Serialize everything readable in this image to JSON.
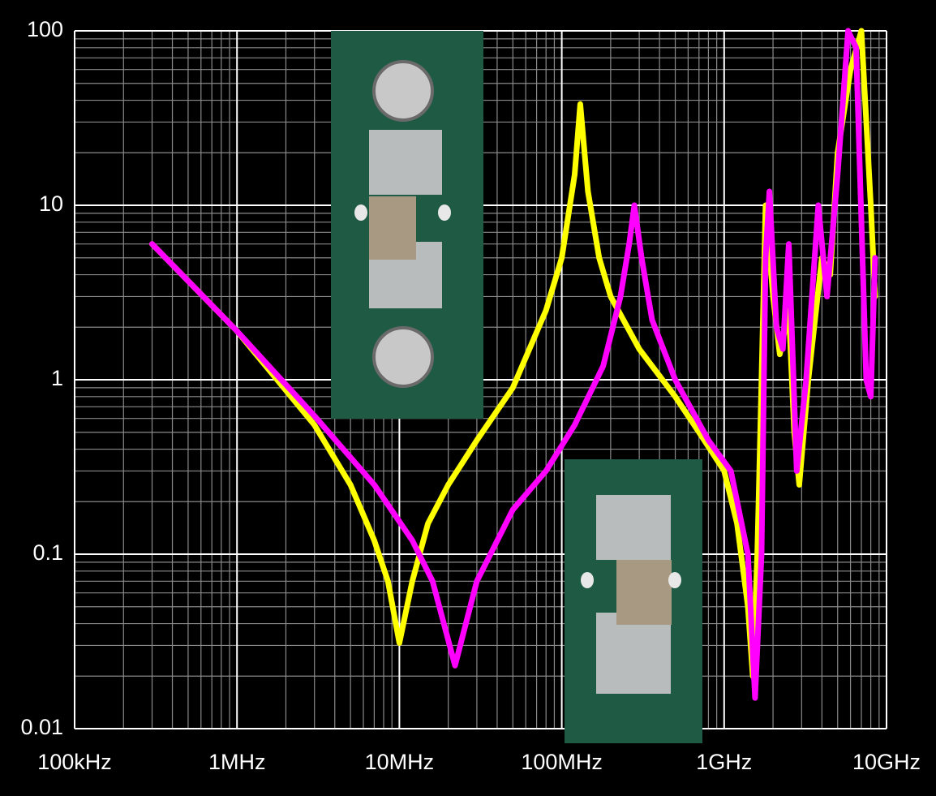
{
  "chart_data": {
    "type": "line",
    "xscale": "log",
    "yscale": "log",
    "grid": true,
    "xlim": [
      100000,
      10000000000
    ],
    "ylim": [
      0.01,
      100
    ],
    "xticks": [
      {
        "value": 100000,
        "label": "100kHz"
      },
      {
        "value": 1000000,
        "label": "1MHz"
      },
      {
        "value": 10000000,
        "label": "10MHz"
      },
      {
        "value": 100000000,
        "label": "100MHz"
      },
      {
        "value": 1000000000,
        "label": "1GHz"
      },
      {
        "value": 10000000000,
        "label": "10GHz"
      }
    ],
    "yticks": [
      0.01,
      0.1,
      1,
      10,
      100
    ],
    "series": [
      {
        "color": "#ffff00",
        "x": [
          300000,
          1000000,
          3000000,
          5000000,
          7000000,
          8500000,
          10000000,
          12000000,
          15000000,
          20000000,
          30000000,
          50000000,
          80000000,
          100000000,
          120000000,
          130000000,
          145000000,
          170000000,
          200000000,
          300000000,
          500000000,
          700000000,
          1000000000,
          1200000000,
          1400000000,
          1500000000,
          1600000000,
          1700000000,
          1800000000,
          2000000000,
          2200000000,
          2500000000,
          2700000000,
          2900000000,
          3300000000,
          4000000000,
          4500000000,
          5000000000,
          6000000000,
          7000000000,
          8000000000,
          8500000000
        ],
        "values": [
          6,
          1.9,
          0.55,
          0.25,
          0.12,
          0.07,
          0.031,
          0.07,
          0.15,
          0.25,
          0.45,
          0.9,
          2.5,
          5,
          15,
          38,
          12,
          5,
          3,
          1.5,
          0.8,
          0.5,
          0.3,
          0.15,
          0.05,
          0.02,
          0.1,
          1,
          10,
          3,
          1.4,
          2.5,
          0.5,
          0.25,
          1,
          5,
          4,
          20,
          60,
          100,
          10,
          3
        ]
      },
      {
        "color": "#ff00ff",
        "x": [
          300000,
          1000000,
          3000000,
          7000000,
          12000000,
          16000000,
          22000000,
          30000000,
          50000000,
          80000000,
          120000000,
          180000000,
          230000000,
          260000000,
          280000000,
          310000000,
          360000000,
          500000000,
          800000000,
          1100000000,
          1400000000,
          1550000000,
          1700000000,
          1800000000,
          1900000000,
          2100000000,
          2300000000,
          2500000000,
          2800000000,
          3200000000,
          3800000000,
          4300000000,
          5000000000,
          5800000000,
          6500000000,
          7500000000,
          8000000000,
          8500000000
        ],
        "values": [
          6,
          1.9,
          0.62,
          0.25,
          0.12,
          0.07,
          0.023,
          0.07,
          0.18,
          0.3,
          0.55,
          1.2,
          3,
          6,
          10,
          5,
          2.2,
          1,
          0.45,
          0.3,
          0.1,
          0.015,
          0.1,
          5,
          12,
          2,
          1.5,
          6,
          0.3,
          1,
          10,
          3,
          15,
          100,
          80,
          1,
          0.8,
          5
        ]
      }
    ]
  }
}
